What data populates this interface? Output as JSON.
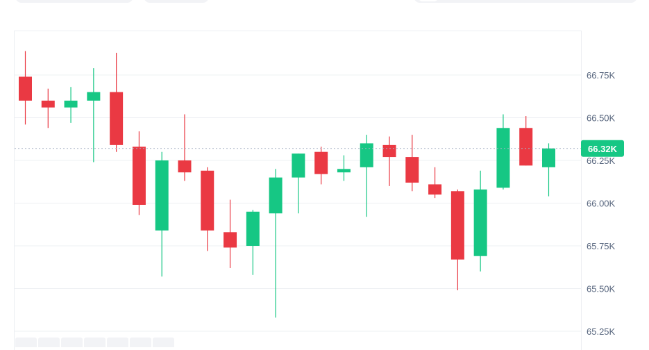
{
  "chart_data": {
    "type": "candlestick",
    "ylim": [
      65200,
      66950
    ],
    "y_ticks": [
      65250,
      65500,
      65750,
      66000,
      66250,
      66500,
      66750
    ],
    "y_tick_labels": [
      "65.25K",
      "65.50K",
      "65.75K",
      "66.00K",
      "66.25K",
      "66.50K",
      "66.75K"
    ],
    "last_price": 66320,
    "last_price_label": "66.32K",
    "candles": [
      {
        "open": 66740,
        "high": 66890,
        "low": 66460,
        "close": 66600
      },
      {
        "open": 66600,
        "high": 66670,
        "low": 66440,
        "close": 66560
      },
      {
        "open": 66560,
        "high": 66680,
        "low": 66470,
        "close": 66600
      },
      {
        "open": 66600,
        "high": 66790,
        "low": 66240,
        "close": 66650
      },
      {
        "open": 66650,
        "high": 66880,
        "low": 66300,
        "close": 66340
      },
      {
        "open": 66330,
        "high": 66420,
        "low": 65930,
        "close": 65990
      },
      {
        "open": 65840,
        "high": 66300,
        "low": 65570,
        "close": 66250
      },
      {
        "open": 66250,
        "high": 66520,
        "low": 66130,
        "close": 66180
      },
      {
        "open": 66190,
        "high": 66210,
        "low": 65720,
        "close": 65840
      },
      {
        "open": 65830,
        "high": 66020,
        "low": 65620,
        "close": 65740
      },
      {
        "open": 65750,
        "high": 65960,
        "low": 65580,
        "close": 65950
      },
      {
        "open": 65940,
        "high": 66200,
        "low": 65330,
        "close": 66150
      },
      {
        "open": 66150,
        "high": 66290,
        "low": 65940,
        "close": 66290
      },
      {
        "open": 66300,
        "high": 66330,
        "low": 66110,
        "close": 66170
      },
      {
        "open": 66180,
        "high": 66280,
        "low": 66130,
        "close": 66200
      },
      {
        "open": 66210,
        "high": 66400,
        "low": 65920,
        "close": 66350
      },
      {
        "open": 66340,
        "high": 66390,
        "low": 66100,
        "close": 66270
      },
      {
        "open": 66270,
        "high": 66400,
        "low": 66070,
        "close": 66120
      },
      {
        "open": 66110,
        "high": 66210,
        "low": 66030,
        "close": 66050
      },
      {
        "open": 66070,
        "high": 66080,
        "low": 65490,
        "close": 65670
      },
      {
        "open": 65690,
        "high": 66190,
        "low": 65600,
        "close": 66080
      },
      {
        "open": 66090,
        "high": 66520,
        "low": 66080,
        "close": 66440
      },
      {
        "open": 66440,
        "high": 66510,
        "low": 66220,
        "close": 66220
      },
      {
        "open": 66210,
        "high": 66350,
        "low": 66040,
        "close": 66320
      }
    ],
    "colors": {
      "up": "#16c784",
      "down": "#ea3943",
      "grid": "#eef0f3",
      "axis_text": "#58667e",
      "price_tag": "#16c784"
    }
  }
}
